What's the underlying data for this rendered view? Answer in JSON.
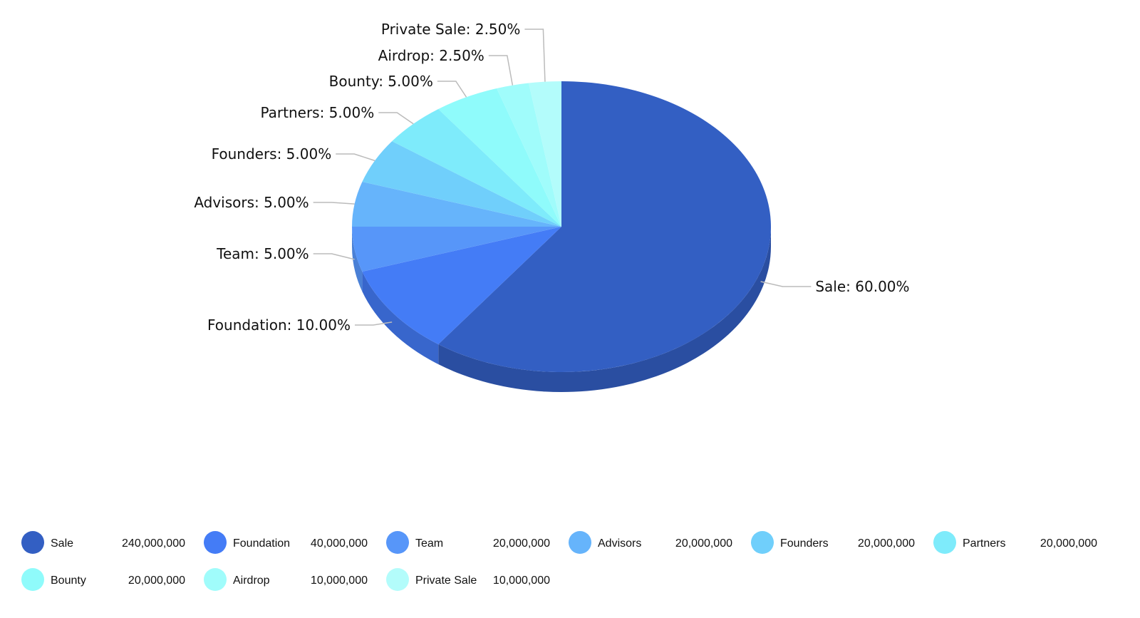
{
  "chart_data": {
    "type": "pie",
    "style": "3d",
    "legend_placement": "bottom",
    "slices": [
      {
        "name": "Sale",
        "value": 240000000,
        "value_label": "240,000,000",
        "percent_label": "Sale: 60.00%",
        "color": "#335fc3",
        "side_color": "#2a4ea1"
      },
      {
        "name": "Foundation",
        "value": 40000000,
        "value_label": "40,000,000",
        "percent_label": "Foundation: 10.00%",
        "color": "#447cf6",
        "side_color": "#3866cc"
      },
      {
        "name": "Team",
        "value": 20000000,
        "value_label": "20,000,000",
        "percent_label": "Team: 5.00%",
        "color": "#5796f9",
        "side_color": "#4a80d6"
      },
      {
        "name": "Advisors",
        "value": 20000000,
        "value_label": "20,000,000",
        "percent_label": "Advisors: 5.00%",
        "color": "#66b4fb",
        "side_color": "#559bd8"
      },
      {
        "name": "Founders",
        "value": 20000000,
        "value_label": "20,000,000",
        "percent_label": "Founders: 5.00%",
        "color": "#70cffb",
        "side_color": "#5eb3d8"
      },
      {
        "name": "Partners",
        "value": 20000000,
        "value_label": "20,000,000",
        "percent_label": "Partners: 5.00%",
        "color": "#7eebfb",
        "side_color": "#6bcad8"
      },
      {
        "name": "Bounty",
        "value": 20000000,
        "value_label": "20,000,000",
        "percent_label": "Bounty: 5.00%",
        "color": "#8ffbfb",
        "side_color": "#79d8d8"
      },
      {
        "name": "Airdrop",
        "value": 10000000,
        "value_label": "10,000,000",
        "percent_label": "Airdrop: 2.50%",
        "color": "#a0fcfb",
        "side_color": "#88d8d8"
      },
      {
        "name": "Private Sale",
        "value": 10000000,
        "value_label": "10,000,000",
        "percent_label": "Private Sale: 2.50%",
        "color": "#b3fcfb",
        "side_color": "#98d8d8"
      }
    ]
  }
}
